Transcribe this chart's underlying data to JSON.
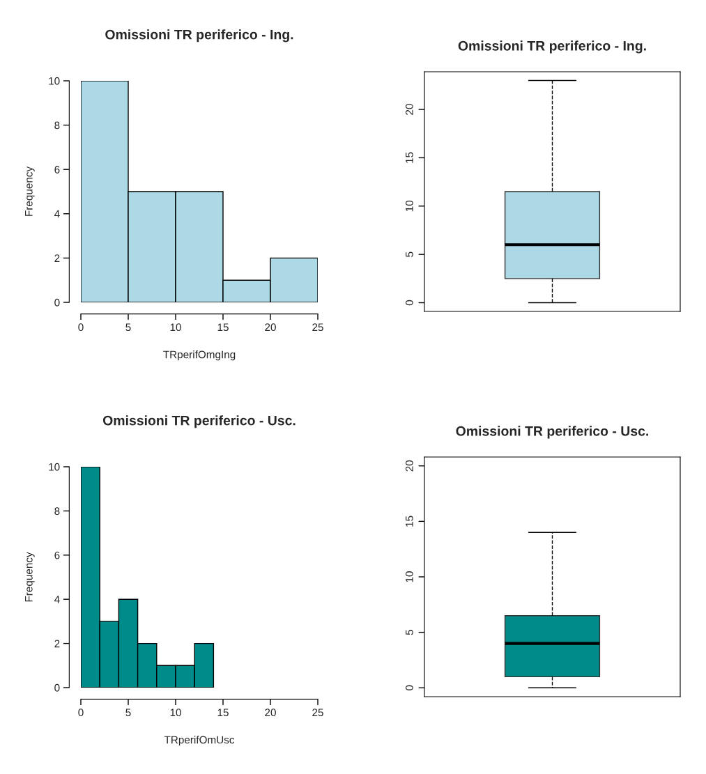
{
  "chart_data": [
    {
      "type": "histogram",
      "title": "Omissioni TR periferico - Ing.",
      "xlabel": "TRperifOmgIng",
      "ylabel": "Frequency",
      "bins": [
        0,
        5,
        10,
        15,
        20,
        25
      ],
      "values": [
        10,
        5,
        5,
        1,
        2
      ],
      "color": "#add8e6",
      "xlim": [
        0,
        25
      ],
      "ylim": [
        0,
        10
      ],
      "xticks": [
        0,
        5,
        10,
        15,
        20,
        25
      ],
      "yticks": [
        0,
        2,
        4,
        6,
        8,
        10
      ],
      "grid": false
    },
    {
      "type": "box",
      "title": "Omissioni TR periferico - Ing.",
      "categories": [
        null
      ],
      "boxes": [
        {
          "low": 0,
          "q1": 2.5,
          "median": 6,
          "q3": 11.5,
          "high": 23
        }
      ],
      "color": "#add8e6",
      "ylim": [
        -0.9,
        23.9
      ],
      "yticks": [
        0,
        5,
        10,
        15,
        20
      ],
      "tick_labels": "y",
      "grid": false
    },
    {
      "type": "histogram",
      "title": "Omissioni TR periferico - Usc.",
      "xlabel": "TRperifOmUsc",
      "ylabel": "Frequency",
      "bins": [
        0,
        2,
        4,
        6,
        8,
        10,
        12,
        14
      ],
      "values": [
        10,
        3,
        4,
        2,
        1,
        1,
        2
      ],
      "color": "#008b8b",
      "xlim": [
        0,
        25
      ],
      "ylim": [
        0,
        10
      ],
      "xticks": [
        0,
        5,
        10,
        15,
        20,
        25
      ],
      "yticks": [
        0,
        2,
        4,
        6,
        8,
        10
      ],
      "grid": false
    },
    {
      "type": "box",
      "title": "Omissioni TR periferico - Usc.",
      "categories": [
        null
      ],
      "boxes": [
        {
          "low": 0,
          "q1": 1,
          "median": 4,
          "q3": 6.5,
          "high": 14
        }
      ],
      "color": "#008b8b",
      "ylim": [
        -0.8,
        20.8
      ],
      "yticks": [
        0,
        5,
        10,
        15,
        20
      ],
      "tick_labels": "y",
      "grid": false
    }
  ]
}
